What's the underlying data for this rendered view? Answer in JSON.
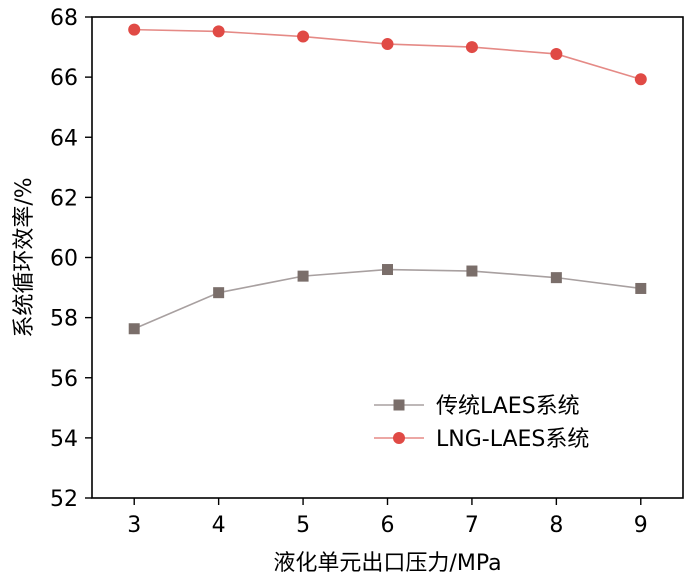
{
  "chart_data": {
    "type": "line",
    "title": "",
    "xlabel": "液化单元出口压力/MPa",
    "ylabel": "系统循环效率/%",
    "x": [
      3,
      4,
      5,
      6,
      7,
      8,
      9
    ],
    "xlim": [
      2.5,
      9.5
    ],
    "ylim": [
      52,
      68
    ],
    "xticks": [
      "3",
      "4",
      "5",
      "6",
      "7",
      "8",
      "9"
    ],
    "yticks": [
      "52",
      "54",
      "56",
      "58",
      "60",
      "62",
      "64",
      "66",
      "68"
    ],
    "grid": false,
    "legend_position": "bottom-right",
    "series": [
      {
        "name": "传统LAES系统",
        "marker": "square",
        "line_color": "#a8a0a0",
        "marker_color": "#7a6e6a",
        "values": [
          57.63,
          58.83,
          59.38,
          59.6,
          59.55,
          59.33,
          58.97
        ]
      },
      {
        "name": "LNG-LAES系统",
        "marker": "circle",
        "line_color": "#e58a86",
        "marker_color": "#e04a45",
        "values": [
          67.58,
          67.52,
          67.35,
          67.1,
          67.0,
          66.77,
          65.93
        ]
      }
    ]
  }
}
